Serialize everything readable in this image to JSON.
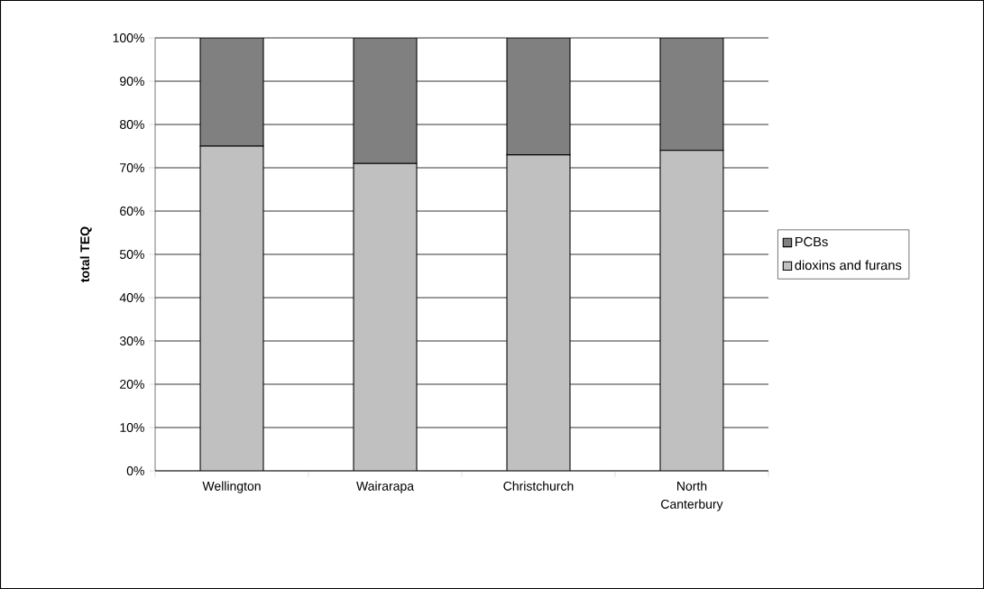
{
  "chart_data": {
    "type": "bar",
    "stacked": true,
    "ylabel": "total TEQ",
    "categories": [
      "Wellington",
      "Wairarapa",
      "Christchurch",
      "North Canterbury"
    ],
    "series": [
      {
        "name": "dioxins and furans",
        "color": "#c0c0c0",
        "values": [
          75,
          71,
          73,
          74
        ]
      },
      {
        "name": "PCBs",
        "color": "#808080",
        "values": [
          25,
          29,
          27,
          26
        ]
      }
    ],
    "ylim": [
      0,
      100
    ],
    "yticks": [
      {
        "value": 0,
        "label": "0%"
      },
      {
        "value": 10,
        "label": "10%"
      },
      {
        "value": 20,
        "label": "20%"
      },
      {
        "value": 30,
        "label": "30%"
      },
      {
        "value": 40,
        "label": "40%"
      },
      {
        "value": 50,
        "label": "50%"
      },
      {
        "value": 60,
        "label": "60%"
      },
      {
        "value": 70,
        "label": "70%"
      },
      {
        "value": 80,
        "label": "80%"
      },
      {
        "value": 90,
        "label": "90%"
      },
      {
        "value": 100,
        "label": "100%"
      }
    ],
    "grid": "y",
    "legend": "right"
  }
}
